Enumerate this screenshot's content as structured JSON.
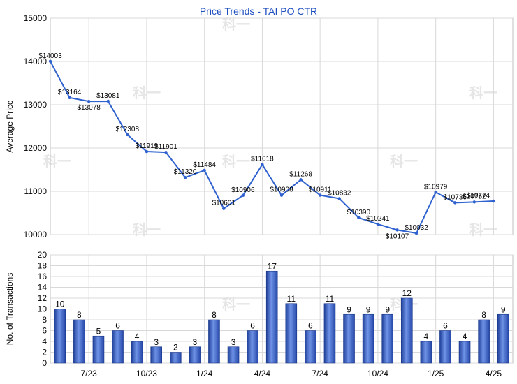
{
  "chart_data": [
    {
      "type": "line",
      "title": "Price Trends - TAI PO CTR",
      "ylabel": "Average Price",
      "ylim": [
        10000,
        15000
      ],
      "yticks": [
        "10000",
        "11000",
        "12000",
        "13000",
        "14000",
        "15000"
      ],
      "color": "#2f62cf",
      "grid": true,
      "points": [
        {
          "x": 0,
          "y": 14003,
          "label": "$14003"
        },
        {
          "x": 1,
          "y": 13164,
          "label": "$13164"
        },
        {
          "x": 2,
          "y": 13078,
          "label": "$13078"
        },
        {
          "x": 3,
          "y": 13081,
          "label": "$13081"
        },
        {
          "x": 4,
          "y": 12308,
          "label": "$12308"
        },
        {
          "x": 5,
          "y": 11919,
          "label": "$11919"
        },
        {
          "x": 6,
          "y": 11901,
          "label": "$11901"
        },
        {
          "x": 7,
          "y": 11320,
          "label": "$11320"
        },
        {
          "x": 8,
          "y": 11484,
          "label": "$11484"
        },
        {
          "x": 9,
          "y": 10601,
          "label": "$10601"
        },
        {
          "x": 10,
          "y": 10906,
          "label": "$10906"
        },
        {
          "x": 11,
          "y": 11618,
          "label": "$11618"
        },
        {
          "x": 12,
          "y": 10908,
          "label": "$10908"
        },
        {
          "x": 13,
          "y": 11268,
          "label": "$11268"
        },
        {
          "x": 14,
          "y": 10911,
          "label": "$10911"
        },
        {
          "x": 15,
          "y": 10832,
          "label": "$10832"
        },
        {
          "x": 16,
          "y": 10390,
          "label": "$10390"
        },
        {
          "x": 17,
          "y": 10241,
          "label": "$10241"
        },
        {
          "x": 18,
          "y": 10107,
          "label": "$10107"
        },
        {
          "x": 19,
          "y": 10032,
          "label": "$10032"
        },
        {
          "x": 20,
          "y": 10979,
          "label": "$10979"
        },
        {
          "x": 21,
          "y": 10736,
          "label": "$10736"
        },
        {
          "x": 22,
          "y": 10752,
          "label": "$10752"
        },
        {
          "x": 23,
          "y": 10774,
          "label": "$10774"
        }
      ]
    },
    {
      "type": "bar",
      "ylabel": "No. of Transactions",
      "ylim": [
        0,
        20
      ],
      "yticks": [
        "0",
        "2",
        "4",
        "6",
        "8",
        "10",
        "12",
        "14",
        "16",
        "18",
        "20"
      ],
      "xticks": [
        "7/23",
        "10/23",
        "1/24",
        "4/24",
        "7/24",
        "10/24",
        "1/25",
        "4/25"
      ],
      "color": "#3a64c8",
      "grid": true,
      "values": [
        10,
        8,
        5,
        6,
        4,
        3,
        2,
        3,
        8,
        3,
        6,
        17,
        11,
        6,
        11,
        9,
        9,
        9,
        12,
        4,
        6,
        4,
        8,
        9
      ]
    }
  ],
  "watermark": "科一"
}
